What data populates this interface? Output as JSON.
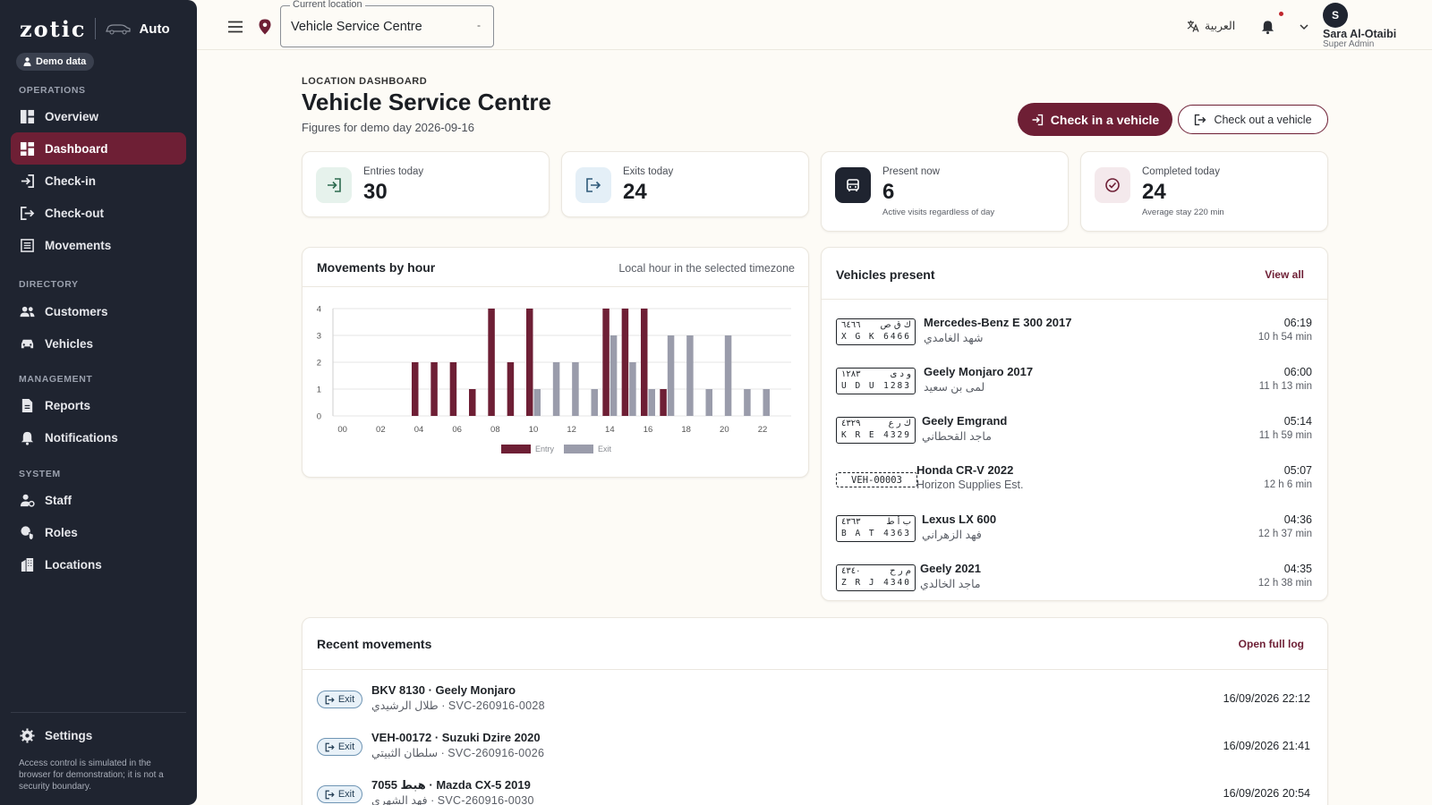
{
  "brand": {
    "logo": "zotic",
    "product": "Auto",
    "demo_chip": "Demo data"
  },
  "sidebar": {
    "sections": [
      {
        "label": "OPERATIONS"
      },
      {
        "label": "DIRECTORY"
      },
      {
        "label": "MANAGEMENT"
      },
      {
        "label": "SYSTEM"
      }
    ],
    "items": [
      {
        "label": "Overview",
        "icon": "grid-icon"
      },
      {
        "label": "Dashboard",
        "icon": "dashboard-icon",
        "active": true
      },
      {
        "label": "Check-in",
        "icon": "login-icon"
      },
      {
        "label": "Check-out",
        "icon": "logout-icon"
      },
      {
        "label": "Movements",
        "icon": "list-icon"
      },
      {
        "label": "Customers",
        "icon": "people-icon"
      },
      {
        "label": "Vehicles",
        "icon": "car-icon"
      },
      {
        "label": "Reports",
        "icon": "document-icon"
      },
      {
        "label": "Notifications",
        "icon": "bell-icon"
      },
      {
        "label": "Staff",
        "icon": "staff-icon"
      },
      {
        "label": "Roles",
        "icon": "shield-icon"
      },
      {
        "label": "Locations",
        "icon": "building-icon"
      }
    ],
    "settings_label": "Settings",
    "note": "Access control is simulated in the browser for demonstration; it is not a security boundary."
  },
  "topbar": {
    "location_label": "Current location",
    "location_value": "Vehicle Service Centre",
    "language": "العربية",
    "user_initial": "S",
    "user_name": "Sara Al-Otaibi",
    "user_role": "Super Admin"
  },
  "page": {
    "eyebrow": "LOCATION DASHBOARD",
    "title": "Vehicle Service Centre",
    "subtitle": "Figures for demo day 2026-09-16",
    "check_in_label": "Check in a vehicle",
    "check_out_label": "Check out a vehicle"
  },
  "stats": [
    {
      "label": "Entries today",
      "value": "30",
      "note": ""
    },
    {
      "label": "Exits today",
      "value": "24",
      "note": ""
    },
    {
      "label": "Present now",
      "value": "6",
      "note": "Active visits regardless of day"
    },
    {
      "label": "Completed today",
      "value": "24",
      "note": "Average stay 220 min"
    }
  ],
  "chart_panel": {
    "title": "Movements by hour",
    "hint": "Local hour in the selected timezone"
  },
  "chart_data": {
    "type": "bar",
    "categories": [
      "00",
      "01",
      "02",
      "03",
      "04",
      "05",
      "06",
      "07",
      "08",
      "09",
      "10",
      "11",
      "12",
      "13",
      "14",
      "15",
      "16",
      "17",
      "18",
      "19",
      "20",
      "21",
      "22",
      "23"
    ],
    "x_tick_labels": [
      "00",
      "02",
      "04",
      "06",
      "08",
      "10",
      "12",
      "14",
      "16",
      "18",
      "20",
      "22"
    ],
    "series": [
      {
        "name": "Entry",
        "color": "#6e1f35",
        "values": [
          0,
          0,
          0,
          0,
          2,
          2,
          2,
          1,
          4,
          2,
          4,
          0,
          0,
          0,
          4,
          4,
          4,
          1,
          0,
          0,
          0,
          0,
          0,
          0
        ]
      },
      {
        "name": "Exit",
        "color": "#9a9cab",
        "values": [
          0,
          0,
          0,
          0,
          0,
          0,
          0,
          0,
          0,
          0,
          1,
          2,
          2,
          1,
          3,
          2,
          1,
          3,
          3,
          1,
          3,
          1,
          1,
          0
        ]
      }
    ],
    "ylim": [
      0,
      4
    ],
    "yticks": [
      "0",
      "1",
      "2",
      "3",
      "4"
    ],
    "grid": true,
    "legend": "bottom"
  },
  "vehicles_panel": {
    "title": "Vehicles present",
    "view_all": "View all",
    "rows": [
      {
        "plate_ar_letters": "ك ق ص",
        "plate_ar_digits": "٦٤٦٦",
        "plate_en_letters": "X G K",
        "plate_en_digits": "6466",
        "name": "Mercedes-Benz E 300 2017",
        "owner": "شهد الغامدي",
        "time": "06:19",
        "duration": "10 h 54 min"
      },
      {
        "plate_ar_letters": "و د ى",
        "plate_ar_digits": "١٢٨٣",
        "plate_en_letters": "U D U",
        "plate_en_digits": "1283",
        "name": "Geely Monjaro 2017",
        "owner": "لمى بن سعيد",
        "time": "06:00",
        "duration": "11 h 13 min"
      },
      {
        "plate_ar_letters": "ك ر ع",
        "plate_ar_digits": "٤٣٢٩",
        "plate_en_letters": "K R E",
        "plate_en_digits": "4329",
        "name": "Geely Emgrand",
        "owner": "ماجد القحطاني",
        "time": "05:14",
        "duration": "11 h 59 min"
      },
      {
        "plate_text": "VEH-00003",
        "name": "Honda CR-V 2022",
        "owner": "Horizon Supplies Est.",
        "time": "05:07",
        "duration": "12 h 6 min"
      },
      {
        "plate_ar_letters": "ب أ ط",
        "plate_ar_digits": "٤٣٦٣",
        "plate_en_letters": "B A T",
        "plate_en_digits": "4363",
        "name": "Lexus LX 600",
        "owner": "فهد الزهراني",
        "time": "04:36",
        "duration": "12 h 37 min"
      },
      {
        "plate_ar_letters": "م ر ح",
        "plate_ar_digits": "٤٣٤٠",
        "plate_en_letters": "Z R J",
        "plate_en_digits": "4340",
        "name": "Geely 2021",
        "owner": "ماجد الخالدي",
        "time": "04:35",
        "duration": "12 h 38 min"
      }
    ]
  },
  "recent_panel": {
    "title": "Recent movements",
    "open_log": "Open full log",
    "rows": [
      {
        "kind": "Exit",
        "title": "BKV 8130 · Geely Monjaro",
        "sub": "طلال الرشيدي · SVC-260916-0028",
        "time": "16/09/2026 22:12"
      },
      {
        "kind": "Exit",
        "title": "VEH-00172 · Suzuki Dzire 2020",
        "sub": "سلطان الثبيتي · SVC-260916-0026",
        "time": "16/09/2026 21:41"
      },
      {
        "kind": "Exit",
        "title": "7055 هبط · Mazda CX-5 2019",
        "sub": "فهد الشهري · SVC-260916-0030",
        "time": "16/09/2026 20:54"
      }
    ]
  },
  "colors": {
    "brand": "#6e1f35",
    "sidebar": "#1f2430",
    "background": "#fdfbf6",
    "exit_bar": "#9a9cab"
  }
}
